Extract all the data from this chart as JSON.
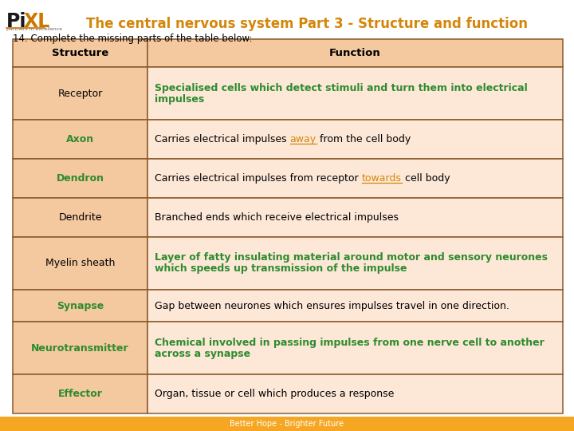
{
  "title": "The central nervous system Part 3 - Structure and function",
  "subtitle": "14. Complete the missing parts of the table below:",
  "footer": "Better Hope - Brighter Future",
  "header_bg": "#f5c9a0",
  "row_bg": "#fde8d8",
  "white_bg": "#ffffff",
  "orange_bar": "#f5a623",
  "border_color": "#8b5a2b",
  "title_color": "#d4860a",
  "green_color": "#2e8b2e",
  "orange_highlight": "#d4860a",
  "black_color": "#000000",
  "col_split": 0.245,
  "rows": [
    {
      "structure": "Structure",
      "is_header": true,
      "struct_green": false,
      "function_parts": [
        {
          "text": "Function",
          "color": "#000000",
          "bold": false,
          "underline": false
        }
      ]
    },
    {
      "structure": "Receptor",
      "is_header": false,
      "struct_green": false,
      "function_parts": [
        {
          "text": "Specialised cells which detect stimuli and turn them into electrical\nimpulses",
          "color": "#2e8b2e",
          "bold": true,
          "underline": false
        }
      ]
    },
    {
      "structure": "Axon",
      "is_header": false,
      "struct_green": true,
      "function_parts": [
        {
          "text": "Carries electrical impulses ",
          "color": "#000000",
          "bold": false,
          "underline": false
        },
        {
          "text": "away",
          "color": "#d4860a",
          "bold": false,
          "underline": true
        },
        {
          "text": " from the cell body",
          "color": "#000000",
          "bold": false,
          "underline": false
        }
      ]
    },
    {
      "structure": "Dendron",
      "is_header": false,
      "struct_green": true,
      "function_parts": [
        {
          "text": "Carries electrical impulses from receptor ",
          "color": "#000000",
          "bold": false,
          "underline": false
        },
        {
          "text": "towards",
          "color": "#d4860a",
          "bold": false,
          "underline": true
        },
        {
          "text": " cell body",
          "color": "#000000",
          "bold": false,
          "underline": false
        }
      ]
    },
    {
      "structure": "Dendrite",
      "is_header": false,
      "struct_green": false,
      "function_parts": [
        {
          "text": "Branched ends which receive electrical impulses",
          "color": "#000000",
          "bold": false,
          "underline": false
        }
      ]
    },
    {
      "structure": "Myelin sheath",
      "is_header": false,
      "struct_green": false,
      "function_parts": [
        {
          "text": "Layer of fatty insulating material around motor and sensory neurones\nwhich speeds up transmission of the impulse",
          "color": "#2e8b2e",
          "bold": true,
          "underline": false
        }
      ]
    },
    {
      "structure": "Synapse",
      "is_header": false,
      "struct_green": true,
      "function_parts": [
        {
          "text": "Gap between neurones which ensures impulses travel in one direction.",
          "color": "#000000",
          "bold": false,
          "underline": false
        }
      ]
    },
    {
      "structure": "Neurotransmitter",
      "is_header": false,
      "struct_green": true,
      "function_parts": [
        {
          "text": "Chemical involved in passing impulses from one nerve cell to another\nacross a synapse",
          "color": "#2e8b2e",
          "bold": true,
          "underline": false
        }
      ]
    },
    {
      "structure": "Effector",
      "is_header": false,
      "struct_green": true,
      "function_parts": [
        {
          "text": "Organ, tissue or cell which produces a response",
          "color": "#000000",
          "bold": false,
          "underline": false
        }
      ]
    }
  ]
}
